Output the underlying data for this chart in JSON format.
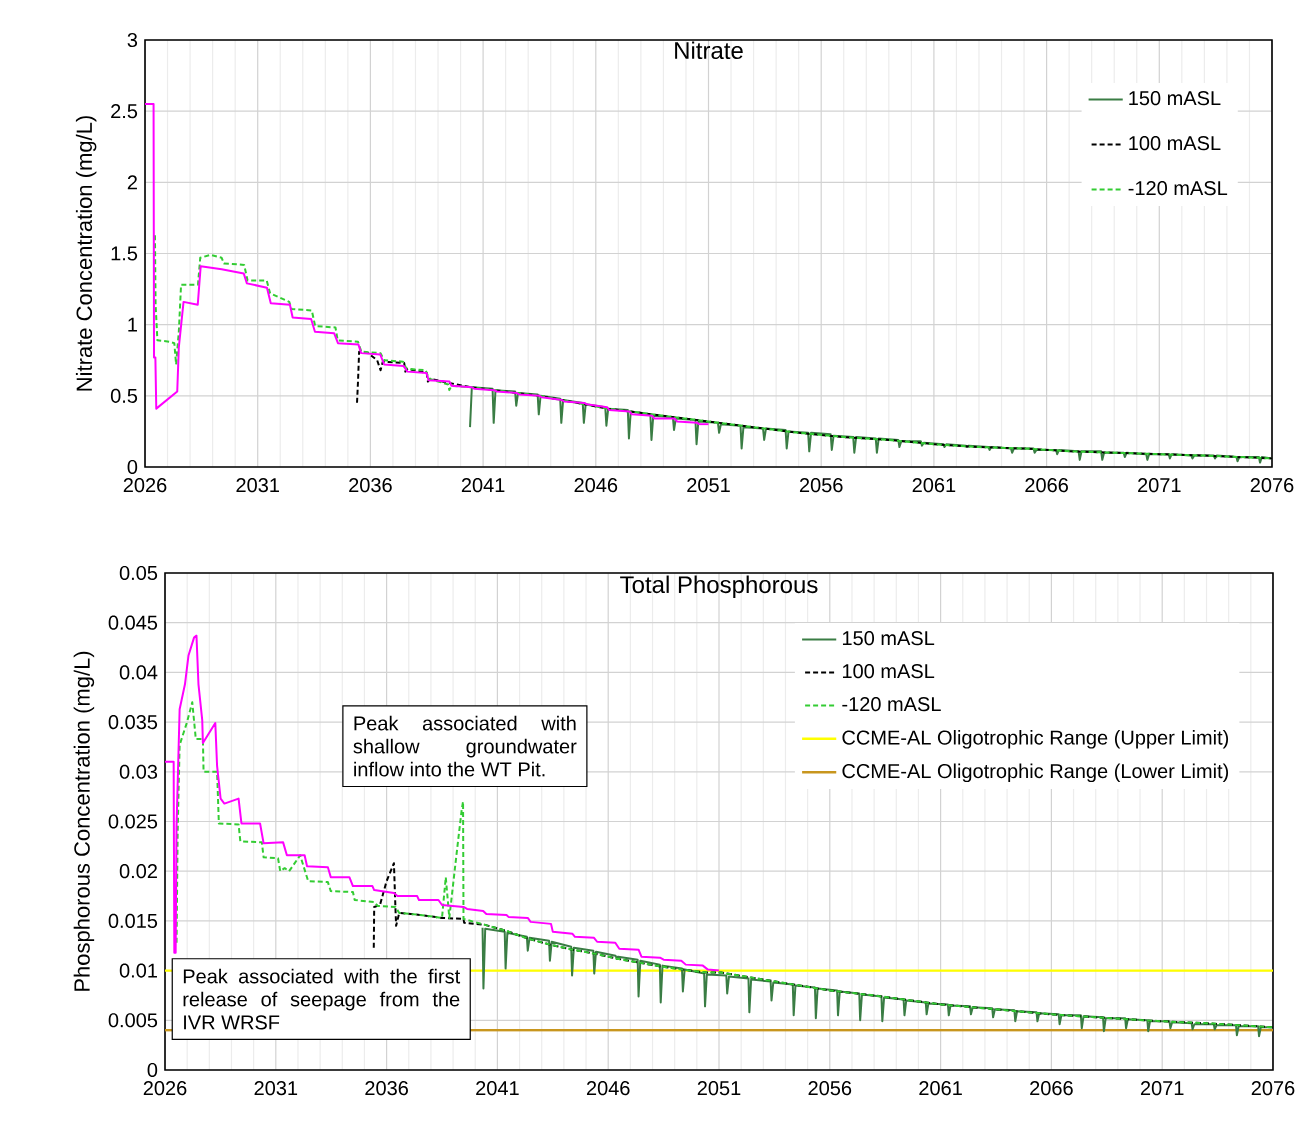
{
  "chart_data": [
    {
      "type": "line",
      "title": "Nitrate",
      "ylabel": "Nitrate Concentration (mg/L)",
      "xlim": [
        2026,
        2076
      ],
      "xticks": [
        2026,
        2031,
        2036,
        2041,
        2046,
        2051,
        2056,
        2061,
        2066,
        2071,
        2076
      ],
      "ylim": [
        0,
        3
      ],
      "yticks": [
        0,
        0.5,
        1,
        1.5,
        2,
        2.5,
        3
      ],
      "grid": true,
      "legend": "top right",
      "marker": "none",
      "series": [
        {
          "name": "150 mASL",
          "color": "#3a7d44",
          "line_style": "solid",
          "x": [
            2040.42,
            2040.5,
            2041.42,
            2041.47,
            2041.55,
            2042.42,
            2042.47,
            2042.55,
            2043.42,
            2043.47,
            2043.55,
            2044.42,
            2044.47,
            2044.55,
            2045.42,
            2045.47,
            2045.55,
            2046.42,
            2046.47,
            2046.55,
            2047.42,
            2047.47,
            2047.55,
            2048.42,
            2048.47,
            2048.55,
            2049.42,
            2049.47,
            2049.55,
            2050.42,
            2050.47,
            2050.55,
            2051.42,
            2051.47,
            2051.55,
            2052.42,
            2052.47,
            2052.55,
            2053.42,
            2053.47,
            2053.55,
            2054.42,
            2054.47,
            2054.55,
            2055.42,
            2055.47,
            2055.55,
            2056.42,
            2056.47,
            2056.55,
            2057.42,
            2057.47,
            2057.55,
            2058.42,
            2058.47,
            2058.55,
            2059.42,
            2059.47,
            2059.55,
            2060.42,
            2060.47,
            2060.55,
            2061.42,
            2061.47,
            2061.55,
            2062.42,
            2062.47,
            2062.55,
            2063.42,
            2063.47,
            2063.55,
            2064.42,
            2064.47,
            2064.55,
            2065.42,
            2065.47,
            2065.55,
            2066.42,
            2066.47,
            2066.55,
            2067.42,
            2067.47,
            2067.55,
            2068.42,
            2068.47,
            2068.55,
            2069.42,
            2069.47,
            2069.55,
            2070.42,
            2070.47,
            2070.55,
            2071.42,
            2071.47,
            2071.55,
            2072.42,
            2072.47,
            2072.55,
            2073.42,
            2073.47,
            2073.55,
            2074.42,
            2074.47,
            2074.55,
            2075.42,
            2075.47,
            2075.55,
            2076
          ],
          "values": [
            0.28,
            0.56,
            0.55,
            0.31,
            0.54,
            0.53,
            0.43,
            0.52,
            0.51,
            0.37,
            0.5,
            0.48,
            0.31,
            0.47,
            0.45,
            0.31,
            0.44,
            0.42,
            0.29,
            0.41,
            0.4,
            0.2,
            0.39,
            0.37,
            0.19,
            0.36,
            0.35,
            0.26,
            0.34,
            0.33,
            0.16,
            0.32,
            0.31,
            0.24,
            0.3,
            0.29,
            0.13,
            0.28,
            0.27,
            0.19,
            0.27,
            0.26,
            0.13,
            0.25,
            0.24,
            0.11,
            0.24,
            0.23,
            0.12,
            0.22,
            0.21,
            0.1,
            0.21,
            0.2,
            0.1,
            0.2,
            0.19,
            0.14,
            0.18,
            0.18,
            0.15,
            0.17,
            0.16,
            0.14,
            0.16,
            0.15,
            0.14,
            0.15,
            0.14,
            0.12,
            0.14,
            0.13,
            0.1,
            0.13,
            0.13,
            0.1,
            0.12,
            0.12,
            0.09,
            0.12,
            0.11,
            0.05,
            0.11,
            0.11,
            0.05,
            0.1,
            0.1,
            0.07,
            0.1,
            0.09,
            0.05,
            0.09,
            0.09,
            0.06,
            0.09,
            0.08,
            0.06,
            0.08,
            0.08,
            0.06,
            0.08,
            0.07,
            0.04,
            0.07,
            0.07,
            0.03,
            0.07,
            0.06
          ]
        },
        {
          "name": "100 mASL",
          "color": "#000000",
          "line_style": "dashed",
          "x": [
            2035.4,
            2035.45,
            2035.5,
            2035.9,
            2036.3,
            2036.45,
            2036.55,
            2037.5,
            2037.55,
            2037.65,
            2038.5,
            2038.55,
            2038.65,
            2039.5,
            2040.5,
            2041.5,
            2042.5,
            2043.5,
            2044.5,
            2045.5,
            2046.5,
            2047.5,
            2048.5,
            2049.5,
            2050.5,
            2051.5,
            2053,
            2055,
            2057,
            2059,
            2061,
            2063,
            2065,
            2067,
            2069,
            2071,
            2073,
            2076
          ],
          "values": [
            0.43,
            0.6,
            0.81,
            0.8,
            0.75,
            0.68,
            0.74,
            0.73,
            0.67,
            0.69,
            0.66,
            0.6,
            0.62,
            0.59,
            0.56,
            0.54,
            0.52,
            0.5,
            0.47,
            0.44,
            0.41,
            0.39,
            0.37,
            0.35,
            0.33,
            0.31,
            0.28,
            0.24,
            0.21,
            0.19,
            0.16,
            0.14,
            0.13,
            0.11,
            0.1,
            0.09,
            0.08,
            0.06
          ]
        },
        {
          "name": "-120 mASL",
          "color": "#33cc33",
          "line_style": "dashed",
          "x": [
            2026.44,
            2026.47,
            2026.55,
            2027.1,
            2027.3,
            2027.38,
            2027.5,
            2027.6,
            2028.35,
            2028.45,
            2028.9,
            2029.4,
            2029.5,
            2030.4,
            2030.55,
            2031.4,
            2031.55,
            2032.4,
            2032.5,
            2033.4,
            2033.55,
            2034.45,
            2034.55,
            2035.45,
            2035.6,
            2036.45,
            2036.6,
            2037.45,
            2037.6,
            2038.45,
            2038.6,
            2039.45,
            2039.5,
            2039.6,
            2040.5,
            2041.5,
            2042.5,
            2043.5,
            2044.5,
            2045.5,
            2046.5,
            2047.5,
            2048.5,
            2049.5,
            2050.5,
            2051.5,
            2053,
            2055,
            2057,
            2059,
            2061,
            2063,
            2065,
            2067,
            2069,
            2071,
            2073,
            2076
          ],
          "values": [
            1.65,
            1.14,
            0.89,
            0.88,
            0.87,
            0.72,
            0.95,
            1.28,
            1.28,
            1.47,
            1.49,
            1.47,
            1.43,
            1.42,
            1.31,
            1.31,
            1.22,
            1.16,
            1.11,
            1.1,
            0.99,
            0.98,
            0.89,
            0.88,
            0.81,
            0.8,
            0.75,
            0.74,
            0.69,
            0.68,
            0.62,
            0.58,
            0.54,
            0.57,
            0.56,
            0.54,
            0.52,
            0.5,
            0.47,
            0.44,
            0.41,
            0.39,
            0.37,
            0.35,
            0.33,
            0.31,
            0.28,
            0.24,
            0.21,
            0.19,
            0.16,
            0.14,
            0.13,
            0.11,
            0.1,
            0.09,
            0.08,
            0.06
          ]
        },
        {
          "color": "#ff00ff",
          "line_style": "solid",
          "x": [
            2026,
            2026.38,
            2026.4,
            2026.46,
            2026.5,
            2027.43,
            2027.5,
            2027.71,
            2028.34,
            2028.47,
            2029.4,
            2030.38,
            2030.52,
            2031.41,
            2031.58,
            2032.43,
            2032.55,
            2033.37,
            2033.54,
            2034.39,
            2034.56,
            2035.47,
            2035.59,
            2036.44,
            2036.61,
            2037.47,
            2037.64,
            2038.49,
            2038.58,
            2039.51,
            2039.6,
            2040.5,
            2040.6,
            2041.5,
            2041.6,
            2042.5,
            2042.6,
            2043.5,
            2043.6,
            2044.5,
            2044.6,
            2045.5,
            2045.6,
            2046.5,
            2046.6,
            2047.5,
            2047.6,
            2048.5,
            2048.6,
            2049.5,
            2049.6,
            2050.5,
            2050.6,
            2051
          ],
          "values": [
            2.55,
            2.55,
            0.77,
            0.77,
            0.41,
            0.53,
            0.84,
            1.16,
            1.14,
            1.41,
            1.39,
            1.36,
            1.29,
            1.26,
            1.15,
            1.14,
            1.05,
            1.04,
            0.95,
            0.94,
            0.87,
            0.86,
            0.8,
            0.79,
            0.72,
            0.71,
            0.67,
            0.66,
            0.61,
            0.6,
            0.57,
            0.56,
            0.55,
            0.54,
            0.53,
            0.52,
            0.51,
            0.5,
            0.49,
            0.47,
            0.46,
            0.45,
            0.44,
            0.42,
            0.4,
            0.39,
            0.37,
            0.36,
            0.34,
            0.34,
            0.32,
            0.31,
            0.3,
            0.3
          ]
        }
      ]
    },
    {
      "type": "line",
      "title": "Total Phosphorous",
      "ylabel": "Phosphorous Concentration (mg/L)",
      "xlim": [
        2026,
        2076
      ],
      "xticks": [
        2026,
        2031,
        2036,
        2041,
        2046,
        2051,
        2056,
        2061,
        2066,
        2071,
        2076
      ],
      "ylim": [
        0,
        0.05
      ],
      "yticks": [
        0,
        0.005,
        0.01,
        0.015,
        0.02,
        0.025,
        0.03,
        0.035,
        0.04,
        0.045,
        0.05
      ],
      "grid": true,
      "legend": "top right",
      "marker": "none",
      "annotations": [
        "Peak associated with shallow groundwater inflow into the WT Pit.",
        "Peak associated with the first release of seepage from the IVR WRSF"
      ],
      "ref_lines": [
        {
          "axis": "y",
          "value": 0.01,
          "label": "CCME-AL Oligotrophic Range (Upper Limit)",
          "color": "#ffff00"
        },
        {
          "axis": "y",
          "value": 0.004,
          "label": "CCME-AL Oligotrophic Range (Lower Limit)",
          "color": "#c8961e"
        }
      ],
      "series": [
        {
          "name": "150 mASL",
          "color": "#3a7d44",
          "line_style": "solid",
          "x": [
            2040.33,
            2040.37,
            2040.45,
            2041.33,
            2041.37,
            2041.45,
            2042.33,
            2042.37,
            2042.45,
            2043.33,
            2043.37,
            2043.45,
            2044.33,
            2044.37,
            2044.45,
            2045.33,
            2045.37,
            2045.45,
            2046.33,
            2046.37,
            2046.45,
            2047.33,
            2047.37,
            2047.45,
            2048.33,
            2048.37,
            2048.45,
            2049.33,
            2049.37,
            2049.45,
            2050.33,
            2050.37,
            2050.45,
            2051.33,
            2051.37,
            2051.45,
            2052.33,
            2052.37,
            2052.45,
            2053.33,
            2053.37,
            2053.45,
            2054.33,
            2054.37,
            2054.45,
            2055.33,
            2055.37,
            2055.45,
            2056.33,
            2056.37,
            2056.45,
            2057.33,
            2057.37,
            2057.45,
            2058.33,
            2058.37,
            2058.45,
            2059.33,
            2059.37,
            2059.45,
            2060.33,
            2060.37,
            2060.45,
            2061.33,
            2061.37,
            2061.45,
            2062.33,
            2062.37,
            2062.45,
            2063.33,
            2063.37,
            2063.45,
            2064.33,
            2064.37,
            2064.45,
            2065.33,
            2065.37,
            2065.45,
            2066.33,
            2066.37,
            2066.45,
            2067.33,
            2067.37,
            2067.45,
            2068.33,
            2068.37,
            2068.45,
            2069.33,
            2069.37,
            2069.45,
            2070.33,
            2070.37,
            2070.45,
            2071.33,
            2071.37,
            2071.45,
            2072.33,
            2072.37,
            2072.45,
            2073.33,
            2073.37,
            2073.45,
            2074.33,
            2074.37,
            2074.45,
            2075.33,
            2075.37,
            2075.45,
            2076
          ],
          "values": [
            0.0143,
            0.0082,
            0.0142,
            0.0139,
            0.0102,
            0.0138,
            0.0134,
            0.012,
            0.0133,
            0.013,
            0.011,
            0.0129,
            0.0124,
            0.0095,
            0.0123,
            0.012,
            0.0097,
            0.0119,
            0.0115,
            0.0113,
            0.0114,
            0.0111,
            0.0074,
            0.011,
            0.0106,
            0.0068,
            0.0105,
            0.0102,
            0.0079,
            0.0101,
            0.0097,
            0.0064,
            0.0096,
            0.0095,
            0.0077,
            0.0094,
            0.0092,
            0.0058,
            0.0091,
            0.0089,
            0.007,
            0.0088,
            0.0086,
            0.0055,
            0.0085,
            0.0083,
            0.0052,
            0.0082,
            0.008,
            0.0055,
            0.0079,
            0.0077,
            0.005,
            0.0076,
            0.0074,
            0.0049,
            0.0073,
            0.0071,
            0.0055,
            0.007,
            0.0068,
            0.0056,
            0.0067,
            0.0066,
            0.0055,
            0.0065,
            0.0064,
            0.0056,
            0.0063,
            0.0062,
            0.0053,
            0.0061,
            0.006,
            0.0049,
            0.0059,
            0.0058,
            0.0049,
            0.0057,
            0.0056,
            0.0046,
            0.0055,
            0.0055,
            0.0042,
            0.0054,
            0.0053,
            0.0039,
            0.0052,
            0.0052,
            0.0042,
            0.0051,
            0.005,
            0.0039,
            0.0049,
            0.0049,
            0.0042,
            0.0048,
            0.0047,
            0.0041,
            0.0046,
            0.0046,
            0.0041,
            0.0045,
            0.0045,
            0.0035,
            0.0044,
            0.0044,
            0.0034,
            0.0043,
            0.0043
          ]
        },
        {
          "name": "100 mASL",
          "color": "#000000",
          "line_style": "dashed",
          "x": [
            2035.42,
            2035.44,
            2035.7,
            2036.0,
            2036.33,
            2036.4,
            2036.43,
            2036.57,
            2037.5,
            2038.5,
            2039.47,
            2039.5,
            2040.44,
            2041.4,
            2042.4,
            2043.4,
            2044.4,
            2045.4,
            2046.4,
            2047.4,
            2048.4,
            2049.4,
            2050.4,
            2051.1,
            2053,
            2056,
            2058,
            2061,
            2063,
            2066,
            2068,
            2071,
            2073,
            2076
          ],
          "values": [
            0.012,
            0.0164,
            0.0166,
            0.019,
            0.0208,
            0.0162,
            0.0145,
            0.0158,
            0.0156,
            0.0153,
            0.0152,
            0.0148,
            0.0146,
            0.014,
            0.0132,
            0.0126,
            0.0121,
            0.0117,
            0.0112,
            0.0108,
            0.0104,
            0.0101,
            0.0098,
            0.0098,
            0.0091,
            0.008,
            0.0075,
            0.0066,
            0.0062,
            0.0056,
            0.0053,
            0.0049,
            0.0047,
            0.0043
          ]
        },
        {
          "name": "-120 mASL",
          "color": "#33cc33",
          "line_style": "dashed",
          "x": [
            2026.52,
            2026.57,
            2026.66,
            2026.98,
            2027.23,
            2027.39,
            2027.71,
            2027.74,
            2028.35,
            2028.43,
            2029.32,
            2029.4,
            2030.37,
            2030.45,
            2031.1,
            2031.2,
            2031.4,
            2031.6,
            2032.1,
            2032.46,
            2033.35,
            2033.48,
            2034.48,
            2034.56,
            2035.44,
            2035.6,
            2036.4,
            2036.57,
            2037.5,
            2038.5,
            2038.67,
            2038.83,
            2039.15,
            2039.39,
            2039.45,
            2039.47,
            2040.44,
            2041.4,
            2042.4,
            2043.4,
            2044.4,
            2045.4,
            2046.4,
            2047.4,
            2048.4,
            2049.4,
            2050.4,
            2051.1,
            2053,
            2056,
            2058,
            2061,
            2063,
            2066,
            2068,
            2071,
            2073,
            2076
          ],
          "values": [
            0.0125,
            0.0238,
            0.0327,
            0.0349,
            0.037,
            0.0333,
            0.0333,
            0.03,
            0.03,
            0.0248,
            0.0247,
            0.023,
            0.0229,
            0.0214,
            0.0213,
            0.02,
            0.0203,
            0.02,
            0.0216,
            0.019,
            0.0189,
            0.018,
            0.0179,
            0.0171,
            0.0169,
            0.0165,
            0.0164,
            0.0158,
            0.0156,
            0.0153,
            0.0194,
            0.0153,
            0.0216,
            0.0262,
            0.027,
            0.0152,
            0.0146,
            0.014,
            0.0132,
            0.0126,
            0.0121,
            0.0117,
            0.0112,
            0.0108,
            0.0104,
            0.0101,
            0.0098,
            0.0098,
            0.0091,
            0.008,
            0.0075,
            0.0066,
            0.0062,
            0.0056,
            0.0053,
            0.0049,
            0.0047,
            0.0043
          ]
        },
        {
          "color": "#ff00ff",
          "line_style": "solid",
          "x": [
            2026,
            2026.39,
            2026.42,
            2026.48,
            2026.52,
            2026.66,
            2026.9,
            2027.06,
            2027.31,
            2027.42,
            2027.51,
            2027.68,
            2027.71,
            2028.27,
            2028.35,
            2028.51,
            2028.68,
            2029.32,
            2029.45,
            2030.29,
            2030.45,
            2031.33,
            2031.5,
            2032.3,
            2032.41,
            2033.35,
            2033.48,
            2034.32,
            2034.48,
            2035.36,
            2035.44,
            2036.33,
            2036.49,
            2037.38,
            2037.46,
            2038.34,
            2038.5,
            2039.47,
            2039.63,
            2040.36,
            2040.5,
            2041.41,
            2041.5,
            2042.37,
            2042.5,
            2043.42,
            2043.5,
            2044.39,
            2044.5,
            2045.36,
            2045.5,
            2046.32,
            2046.5,
            2047.37,
            2047.5,
            2048.34,
            2048.5,
            2049.3,
            2049.5,
            2050.27,
            2050.5,
            2051
          ],
          "values": [
            0.031,
            0.031,
            0.0118,
            0.0118,
            0.0245,
            0.0363,
            0.0388,
            0.0417,
            0.0435,
            0.0437,
            0.0388,
            0.0352,
            0.0329,
            0.0349,
            0.0306,
            0.0273,
            0.0268,
            0.0273,
            0.0248,
            0.0248,
            0.0228,
            0.0229,
            0.0216,
            0.0216,
            0.0205,
            0.0204,
            0.0194,
            0.0194,
            0.0185,
            0.0185,
            0.0181,
            0.0178,
            0.0175,
            0.0175,
            0.0171,
            0.0171,
            0.0166,
            0.0164,
            0.0162,
            0.016,
            0.0157,
            0.0156,
            0.0154,
            0.0153,
            0.0149,
            0.0147,
            0.0139,
            0.0137,
            0.0134,
            0.0133,
            0.0129,
            0.0128,
            0.0122,
            0.0121,
            0.0114,
            0.0113,
            0.0111,
            0.011,
            0.0106,
            0.0105,
            0.0101,
            0.01
          ]
        }
      ]
    }
  ]
}
